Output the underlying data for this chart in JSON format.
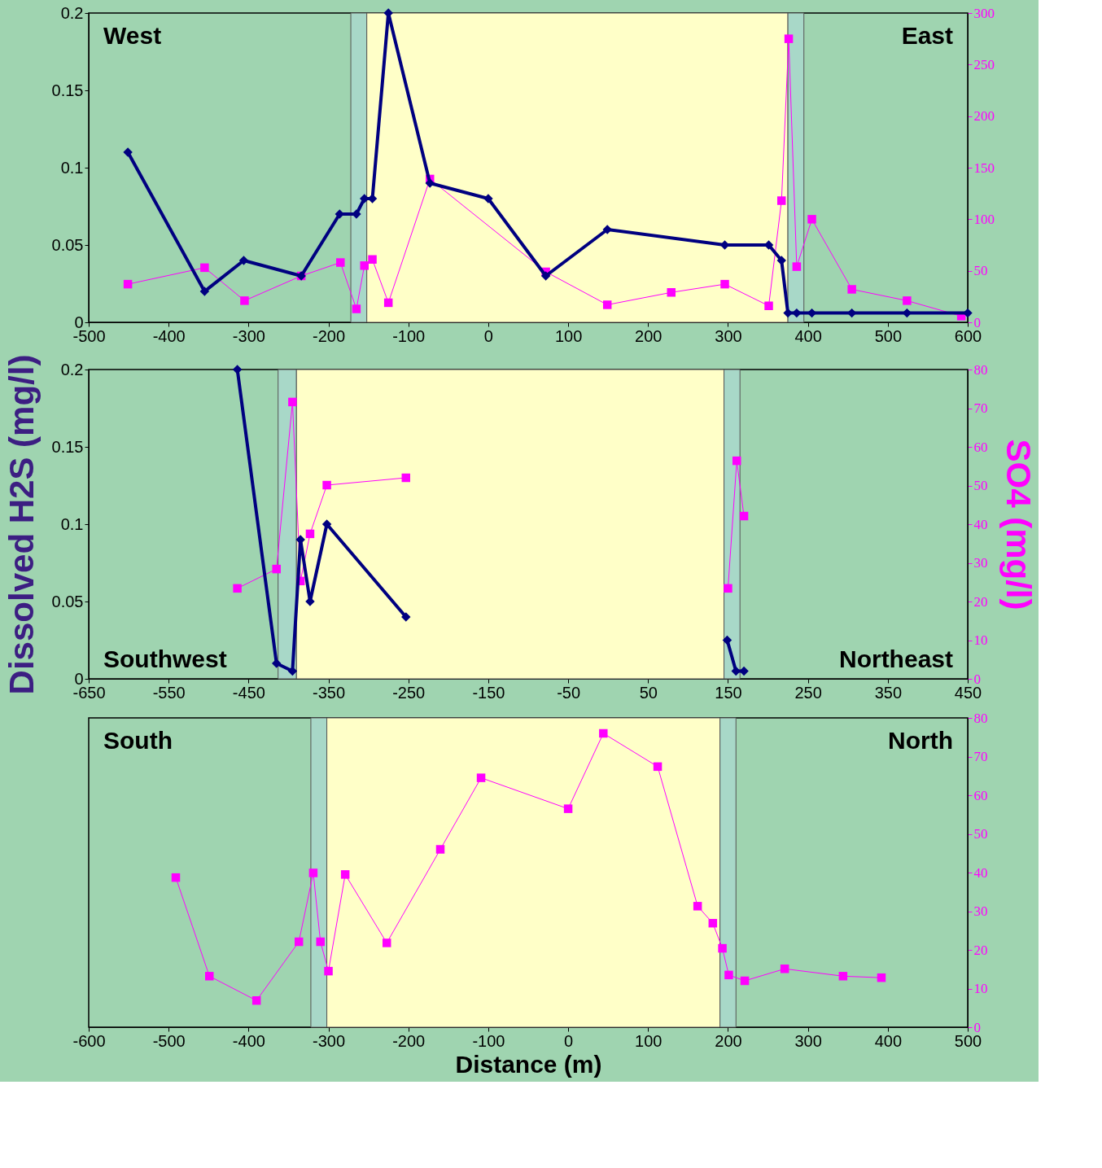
{
  "chart_data": [
    {
      "type": "line",
      "xlim": [
        -500,
        600
      ],
      "xticks": [
        -500,
        -400,
        -300,
        -200,
        -100,
        0,
        100,
        200,
        300,
        400,
        500,
        600
      ],
      "ylim": [
        0,
        0.2
      ],
      "yticks": [
        0,
        0.05,
        0.1,
        0.15,
        0.2
      ],
      "y2lim": [
        0,
        300
      ],
      "y2ticks": [
        0,
        50,
        100,
        150,
        200,
        250,
        300
      ],
      "grid": false,
      "annotations": [
        "West",
        "East"
      ],
      "bands": [
        {
          "axis": "x",
          "from": -172,
          "to": -152,
          "color": "#a8d8c8"
        },
        {
          "axis": "x",
          "from": -152,
          "to": 375,
          "color": "#ffffc8"
        },
        {
          "axis": "x",
          "from": 375,
          "to": 395,
          "color": "#a8d8c8"
        }
      ],
      "series": [
        {
          "color": "#000080",
          "marker": "diamond",
          "line_style": "solid",
          "x": [
            -451,
            -355,
            -306,
            -234,
            -186,
            -165,
            -155,
            -145,
            -125,
            -73,
            0,
            72,
            149,
            296,
            351,
            367,
            375,
            386,
            405,
            455,
            524,
            600
          ],
          "values": [
            0.11,
            0.02,
            0.04,
            0.03,
            0.07,
            0.07,
            0.08,
            0.08,
            0.2,
            0.09,
            0.08,
            0.03,
            0.06,
            0.05,
            0.05,
            0.04,
            0.006,
            0.006,
            0.006,
            0.006,
            0.006,
            0.006
          ]
        },
        {
          "color": "#ff00ff",
          "marker": "square",
          "line_style": "solid",
          "axis": "y2",
          "x": [
            -451,
            -355,
            -305,
            -234,
            -185,
            -165,
            -155,
            -145,
            -125,
            -73,
            72,
            149,
            229,
            296,
            351,
            367,
            376,
            386,
            405,
            455,
            524,
            592
          ],
          "values": [
            37,
            53,
            21,
            45,
            58,
            13,
            55,
            61,
            19,
            139,
            49,
            17,
            29,
            37,
            16,
            118,
            275,
            54,
            100,
            32,
            21,
            6
          ]
        }
      ]
    },
    {
      "type": "line",
      "xlim": [
        -650,
        450
      ],
      "xticks": [
        -650,
        -550,
        -450,
        -350,
        -250,
        -150,
        -50,
        50,
        150,
        250,
        350,
        450
      ],
      "ylim": [
        0,
        0.2
      ],
      "yticks": [
        0,
        0.05,
        0.1,
        0.15,
        0.2
      ],
      "y2lim": [
        0,
        80
      ],
      "y2ticks": [
        0,
        10,
        20,
        30,
        40,
        50,
        60,
        70,
        80
      ],
      "ylabel": "Dissolved H2S (mg/l)",
      "y2label": "SO4 (mg/l)",
      "grid": false,
      "annotations": [
        "Southwest",
        "Northeast"
      ],
      "bands": [
        {
          "axis": "x",
          "from": -413,
          "to": -390,
          "color": "#a8d8c8"
        },
        {
          "axis": "x",
          "from": -390,
          "to": 145,
          "color": "#ffffc8"
        },
        {
          "axis": "x",
          "from": 145,
          "to": 165,
          "color": "#a8d8c8"
        }
      ],
      "series": [
        {
          "color": "#000080",
          "marker": "diamond",
          "line_style": "solid",
          "x": [
            -464,
            -415,
            -395,
            -385,
            -373,
            -352,
            -253
          ],
          "values": [
            0.2,
            0.01,
            0.005,
            0.09,
            0.05,
            0.1,
            0.04
          ]
        },
        {
          "color": "#000080",
          "marker": "diamond",
          "line_style": "solid",
          "x": [
            149,
            160,
            170
          ],
          "values": [
            0.025,
            0.005,
            0.005
          ]
        },
        {
          "color": "#ff00ff",
          "marker": "square",
          "line_style": "solid",
          "axis": "y2",
          "x": [
            -464,
            -415,
            -395,
            -385,
            -373,
            -352,
            -253
          ],
          "values": [
            23.4,
            28.4,
            71.6,
            25.3,
            37.5,
            50.1,
            52
          ]
        },
        {
          "color": "#ff00ff",
          "marker": "square",
          "line_style": "solid",
          "axis": "y2",
          "x": [
            150,
            161,
            170
          ],
          "values": [
            23.4,
            56.4,
            42.1
          ]
        }
      ]
    },
    {
      "type": "line",
      "xlim": [
        -600,
        500
      ],
      "xticks": [
        -600,
        -500,
        -400,
        -300,
        -200,
        -100,
        0,
        100,
        200,
        300,
        400,
        500
      ],
      "y2lim": [
        0,
        80
      ],
      "y2ticks": [
        0,
        10,
        20,
        30,
        40,
        50,
        60,
        70,
        80
      ],
      "xlabel": "Distance (m)",
      "grid": false,
      "annotations": [
        "South",
        "North"
      ],
      "bands": [
        {
          "axis": "x",
          "from": -322,
          "to": -302,
          "color": "#a8d8c8"
        },
        {
          "axis": "x",
          "from": -302,
          "to": 190,
          "color": "#ffffc8"
        },
        {
          "axis": "x",
          "from": 190,
          "to": 210,
          "color": "#a8d8c8"
        }
      ],
      "series": [
        {
          "color": "#ff00ff",
          "marker": "square",
          "line_style": "solid",
          "axis": "y2",
          "x": [
            -491,
            -449,
            -390,
            -337,
            -319,
            -310,
            -300,
            -279,
            -227,
            -160,
            -109,
            0,
            44,
            112,
            162,
            181,
            193,
            201,
            221,
            271,
            344,
            392
          ],
          "values": [
            38.7,
            13.2,
            6.9,
            22.1,
            39.9,
            22.1,
            14.5,
            39.5,
            21.8,
            46,
            64.5,
            56.5,
            76,
            67.4,
            31.3,
            26.9,
            20.4,
            13.5,
            12,
            15.1,
            13.2,
            12.8
          ]
        }
      ]
    }
  ]
}
